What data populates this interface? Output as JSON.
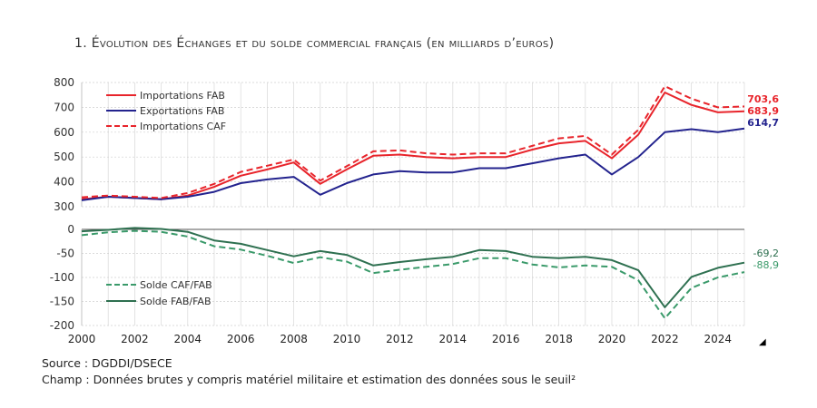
{
  "title": "1.   Évolution des Échanges et du solde commercial français (en milliards d’euros)",
  "source": "Source : DGDDI/DSECE",
  "champ": "Champ : Données brutes y compris matériel militaire et estimation des données sous le seuil²",
  "chart_data": [
    {
      "type": "line",
      "x": [
        2000,
        2001,
        2002,
        2003,
        2004,
        2005,
        2006,
        2007,
        2008,
        2009,
        2010,
        2011,
        2012,
        2013,
        2014,
        2015,
        2016,
        2017,
        2018,
        2019,
        2020,
        2021,
        2022,
        2023,
        2024,
        2025
      ],
      "ylim": [
        300,
        800
      ],
      "yticks": [
        "300",
        "400",
        "500",
        "600",
        "700",
        "800"
      ],
      "grid": true,
      "legend": "top-left",
      "series": [
        {
          "name": "Importations FAB",
          "color": "#e8242b",
          "dash": false,
          "end_label": "683,9",
          "values": [
            330,
            340,
            335,
            330,
            345,
            380,
            425,
            450,
            478,
            392,
            450,
            505,
            510,
            500,
            495,
            500,
            500,
            530,
            555,
            565,
            495,
            590,
            760,
            710,
            680,
            683.9
          ]
        },
        {
          "name": "Exportations FAB",
          "color": "#23238e",
          "dash": false,
          "end_label": "614,7",
          "values": [
            326,
            340,
            335,
            330,
            340,
            360,
            395,
            410,
            420,
            348,
            395,
            430,
            443,
            438,
            438,
            455,
            455,
            475,
            495,
            510,
            430,
            500,
            600,
            612,
            600,
            614.7
          ]
        },
        {
          "name": "Importations CAF",
          "color": "#e8242b",
          "dash": true,
          "end_label": "703,6",
          "values": [
            338,
            345,
            340,
            335,
            355,
            392,
            440,
            465,
            490,
            405,
            463,
            523,
            527,
            515,
            510,
            515,
            515,
            545,
            575,
            585,
            510,
            610,
            785,
            735,
            700,
            703.6
          ]
        }
      ]
    },
    {
      "type": "line",
      "x": [
        2000,
        2001,
        2002,
        2003,
        2004,
        2005,
        2006,
        2007,
        2008,
        2009,
        2010,
        2011,
        2012,
        2013,
        2014,
        2015,
        2016,
        2017,
        2018,
        2019,
        2020,
        2021,
        2022,
        2023,
        2024,
        2025
      ],
      "ylim": [
        -200,
        0
      ],
      "yticks": [
        "-200",
        "-150",
        "-100",
        "-50",
        "0"
      ],
      "xticks": [
        "2000",
        "2002",
        "2004",
        "2006",
        "2008",
        "2010",
        "2012",
        "2014",
        "2016",
        "2018",
        "2020",
        "2022",
        "2024"
      ],
      "grid": true,
      "legend": "bottom-left",
      "series": [
        {
          "name": "Solde CAF/FAB",
          "color": "#3a9a6a",
          "dash": true,
          "end_label": "-88,9",
          "values": [
            -12,
            -6,
            -3,
            -5,
            -15,
            -35,
            -42,
            -55,
            -70,
            -58,
            -67,
            -91,
            -84,
            -78,
            -72,
            -60,
            -60,
            -73,
            -79,
            -75,
            -78,
            -106,
            -185,
            -122,
            -100,
            -88.9
          ]
        },
        {
          "name": "Solde FAB/FAB",
          "color": "#2e7050",
          "dash": false,
          "end_label": "-69,2",
          "values": [
            -4,
            -1,
            3,
            1,
            -5,
            -23,
            -30,
            -43,
            -56,
            -45,
            -53,
            -75,
            -68,
            -62,
            -57,
            -43,
            -45,
            -57,
            -60,
            -57,
            -64,
            -85,
            -162,
            -99,
            -80,
            -69.2
          ]
        }
      ]
    }
  ]
}
